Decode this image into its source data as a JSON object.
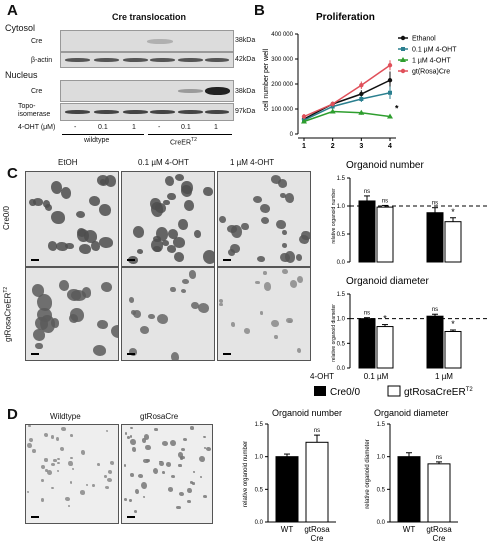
{
  "panelA": {
    "letter": "A",
    "title": "Cre translocation",
    "cytosol_label": "Cytosol",
    "nucleus_label": "Nucleus",
    "rows": [
      {
        "label": "Cre",
        "kda": "38kDa"
      },
      {
        "label": "β-actin",
        "kda": "42kDa"
      },
      {
        "label": "Cre",
        "kda": "38kDa"
      },
      {
        "label": "Topo-isomerase",
        "kda": "97kDa"
      }
    ],
    "treatment_label": "4-OHT (μM)",
    "doses": [
      "-",
      "0.1",
      "1",
      "-",
      "0.1",
      "1"
    ],
    "groups": [
      "wildtype",
      "CreER"
    ],
    "groups_sup": [
      "",
      "T2"
    ]
  },
  "panelB": {
    "letter": "B",
    "title": "Proliferation",
    "ylabel": "cell number per well",
    "legend": [
      "Ethanol",
      "0.1 µM 4-OHT",
      "1 µM 4-OHT",
      "gt(Rosa)Cre"
    ],
    "star": "*"
  },
  "panelC": {
    "letter": "C",
    "col_headers": [
      "EtOH",
      "0.1 µM 4-OHT",
      "1 µM 4-OHT"
    ],
    "row_labels": [
      "Cre0/0",
      "gtRosaCreER"
    ],
    "row_label_sup": "T2",
    "number_title": "Organoid number",
    "diameter_title": "Organoid diameter",
    "ylabel_number": "relative organoid number",
    "ylabel_diameter": "relative organoid diameter",
    "xaxis_prefix": "4-OHT",
    "xaxis_doses": [
      "0.1 µM",
      "1 µM"
    ],
    "legend": [
      "Cre0/0",
      "gtRosaCreER"
    ],
    "legend_sup": "T2"
  },
  "panelD": {
    "letter": "D",
    "col_headers": [
      "Wildtype",
      "gtRosaCre"
    ],
    "number_title": "Organoid number",
    "diameter_title": "Organoid diameter",
    "ylabel_number": "relative organoid number",
    "ylabel_diameter": "relative organoid diameter",
    "xcats": [
      "WT",
      "gtRosa Cre"
    ]
  },
  "colors": {
    "ethanol": "#111111",
    "oht01": "#2a7f8f",
    "oht1": "#2e9e2e",
    "rosa": "#e0505a"
  },
  "chart_data": [
    {
      "type": "line",
      "title": "Proliferation",
      "xlabel": "",
      "ylabel": "cell number per well",
      "x": [
        1,
        2,
        3,
        4
      ],
      "ylim": [
        0,
        400000
      ],
      "yticks": [
        0,
        100000,
        200000,
        300000,
        400000
      ],
      "yticklabels": [
        "0",
        "100 000",
        "200 000",
        "300 000",
        "400 000"
      ],
      "series": [
        {
          "name": "Ethanol",
          "values": [
            60000,
            120000,
            160000,
            215000
          ],
          "errors": [
            10000,
            10000,
            15000,
            35000
          ]
        },
        {
          "name": "0.1 µM 4-OHT",
          "values": [
            55000,
            110000,
            140000,
            165000
          ],
          "errors": [
            8000,
            10000,
            12000,
            25000
          ]
        },
        {
          "name": "1 µM 4-OHT",
          "values": [
            50000,
            90000,
            85000,
            70000
          ],
          "errors": [
            8000,
            8000,
            8000,
            8000
          ]
        },
        {
          "name": "gt(Rosa)Cre",
          "values": [
            70000,
            120000,
            195000,
            275000
          ],
          "errors": [
            10000,
            10000,
            15000,
            20000
          ]
        }
      ]
    },
    {
      "type": "bar",
      "title": "Organoid number",
      "ylabel": "relative organoid number",
      "categories": [
        "0.1 µM",
        "1 µM"
      ],
      "ylim": [
        0,
        1.5
      ],
      "yticks": [
        0.0,
        0.5,
        1.0,
        1.5
      ],
      "yticklabels": [
        "0.0",
        "0.5",
        "1.0",
        "1.5"
      ],
      "reference_line": 1.0,
      "series": [
        {
          "name": "Cre0/0",
          "values": [
            1.09,
            0.88
          ],
          "errors": [
            0.09,
            0.09
          ]
        },
        {
          "name": "gtRosaCreERT2",
          "values": [
            0.98,
            0.72
          ],
          "errors": [
            0.03,
            0.07
          ]
        }
      ],
      "annotations": [
        "ns",
        "ns",
        "ns",
        "*"
      ]
    },
    {
      "type": "bar",
      "title": "Organoid diameter",
      "ylabel": "relative organoid diameter",
      "categories": [
        "0.1 µM",
        "1 µM"
      ],
      "ylim": [
        0,
        1.5
      ],
      "yticks": [
        0.0,
        0.5,
        1.0,
        1.5
      ],
      "yticklabels": [
        "0.0",
        "0.5",
        "1.0",
        "1.5"
      ],
      "reference_line": 1.0,
      "series": [
        {
          "name": "Cre0/0",
          "values": [
            1.0,
            1.05
          ],
          "errors": [
            0.02,
            0.04
          ]
        },
        {
          "name": "gtRosaCreERT2",
          "values": [
            0.84,
            0.74
          ],
          "errors": [
            0.04,
            0.03
          ]
        }
      ],
      "annotations": [
        "ns",
        "*",
        "ns",
        "*"
      ]
    },
    {
      "type": "bar",
      "title": "Organoid number",
      "ylabel": "relative organoid number",
      "categories": [
        "WT",
        "gtRosa Cre"
      ],
      "values": [
        1.0,
        1.22
      ],
      "errors": [
        0.04,
        0.11
      ],
      "ylim": [
        0,
        1.5
      ],
      "yticks": [
        0.0,
        0.5,
        1.0,
        1.5
      ],
      "yticklabels": [
        "0.0",
        "0.5",
        "1.0",
        "1.5"
      ],
      "annotations": [
        "",
        "ns"
      ]
    },
    {
      "type": "bar",
      "title": "Organoid diameter",
      "ylabel": "relative organoid diameter",
      "categories": [
        "WT",
        "gtRosa Cre"
      ],
      "values": [
        1.0,
        0.89
      ],
      "errors": [
        0.06,
        0.03
      ],
      "ylim": [
        0,
        1.5
      ],
      "yticks": [
        0.0,
        0.5,
        1.0,
        1.5
      ],
      "yticklabels": [
        "0.0",
        "0.5",
        "1.0",
        "1.5"
      ],
      "annotations": [
        "",
        "ns"
      ]
    }
  ]
}
